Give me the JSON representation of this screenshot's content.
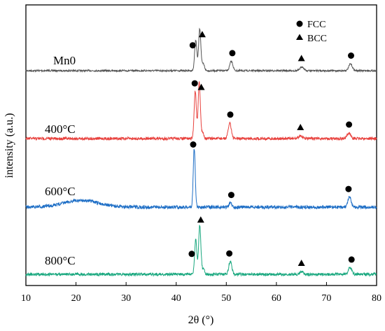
{
  "chart_data": {
    "type": "line",
    "title": "",
    "xlabel": "2θ (°)",
    "ylabel": "intensity (a.u.)",
    "xlim": [
      10,
      80
    ],
    "xticks": [
      10,
      20,
      30,
      40,
      50,
      60,
      70,
      80
    ],
    "yticks_shown": false,
    "grid": false,
    "stacked_offset": true,
    "legend": {
      "placement": "top-right",
      "entries": [
        {
          "marker": "circle",
          "label": "FCC"
        },
        {
          "marker": "triangle",
          "label": "BCC"
        }
      ]
    },
    "series": [
      {
        "name": "Mn0",
        "color": "#555555",
        "peaks": [
          {
            "x": 43.9,
            "h": 0.55,
            "w": 0.22
          },
          {
            "x": 44.7,
            "h": 0.75,
            "w": 0.22
          },
          {
            "x": 45.4,
            "h": 0.12,
            "w": 0.25
          },
          {
            "x": 51.0,
            "h": 0.17,
            "w": 0.3
          },
          {
            "x": 65.1,
            "h": 0.07,
            "w": 0.35
          },
          {
            "x": 74.8,
            "h": 0.12,
            "w": 0.35
          }
        ],
        "markers": [
          {
            "type": "circle",
            "x": 43.3
          },
          {
            "type": "triangle",
            "x": 45.2
          },
          {
            "type": "circle",
            "x": 51.2
          },
          {
            "type": "triangle",
            "x": 65.0
          },
          {
            "type": "circle",
            "x": 74.9
          }
        ]
      },
      {
        "name": "400°C",
        "color": "#e8413d",
        "peaks": [
          {
            "x": 43.8,
            "h": 0.85,
            "w": 0.22
          },
          {
            "x": 44.6,
            "h": 1.0,
            "w": 0.22
          },
          {
            "x": 45.3,
            "h": 0.1,
            "w": 0.25
          },
          {
            "x": 50.7,
            "h": 0.28,
            "w": 0.3
          },
          {
            "x": 64.8,
            "h": 0.05,
            "w": 0.35
          },
          {
            "x": 74.5,
            "h": 0.1,
            "w": 0.35
          }
        ],
        "markers": [
          {
            "type": "circle",
            "x": 43.7
          },
          {
            "type": "triangle",
            "x": 45.0
          },
          {
            "type": "circle",
            "x": 50.8
          },
          {
            "type": "triangle",
            "x": 64.8
          },
          {
            "type": "circle",
            "x": 74.5
          }
        ]
      },
      {
        "name": "600°C",
        "color": "#1f6fc6",
        "hump": {
          "x": 21.0,
          "h": 0.12,
          "w": 3.5
        },
        "peaks": [
          {
            "x": 43.6,
            "h": 1.05,
            "w": 0.2
          },
          {
            "x": 50.8,
            "h": 0.07,
            "w": 0.3
          },
          {
            "x": 74.6,
            "h": 0.18,
            "w": 0.3
          }
        ],
        "markers": [
          {
            "type": "circle",
            "x": 43.4
          },
          {
            "type": "circle",
            "x": 51.0
          },
          {
            "type": "circle",
            "x": 74.4
          }
        ]
      },
      {
        "name": "800°C",
        "color": "#1aa87f",
        "peaks": [
          {
            "x": 43.9,
            "h": 0.62,
            "w": 0.22
          },
          {
            "x": 44.7,
            "h": 0.88,
            "w": 0.22
          },
          {
            "x": 45.4,
            "h": 0.1,
            "w": 0.25
          },
          {
            "x": 50.8,
            "h": 0.23,
            "w": 0.3
          },
          {
            "x": 65.0,
            "h": 0.05,
            "w": 0.35
          },
          {
            "x": 74.7,
            "h": 0.12,
            "w": 0.35
          }
        ],
        "markers": [
          {
            "type": "circle",
            "x": 43.1
          },
          {
            "type": "triangle",
            "x": 44.9
          },
          {
            "type": "circle",
            "x": 50.6
          },
          {
            "type": "triangle",
            "x": 65.0
          },
          {
            "type": "circle",
            "x": 75.0
          }
        ]
      }
    ]
  }
}
